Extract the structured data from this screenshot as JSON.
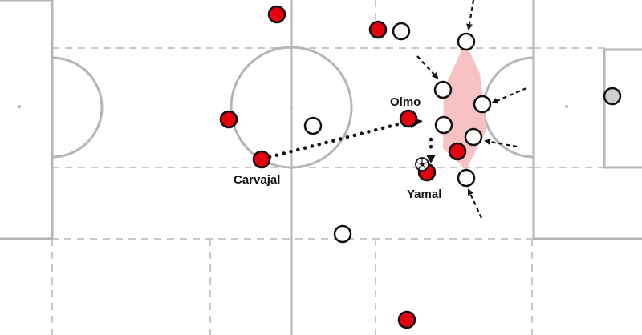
{
  "pitch": {
    "line_color": "#b5b5b5",
    "dash_color": "#c8c8c8",
    "background": "#ffffff"
  },
  "colors": {
    "team_red": "#e3000f",
    "team_white": "#ffffff",
    "goalkeeper": "#cfcfcf",
    "zone": "#f7b7bb"
  },
  "labels": {
    "olmo": "Olmo",
    "carvajal": "Carvajal",
    "yamal": "Yamal"
  },
  "icons": {
    "ball": "soccer-ball-icon"
  }
}
